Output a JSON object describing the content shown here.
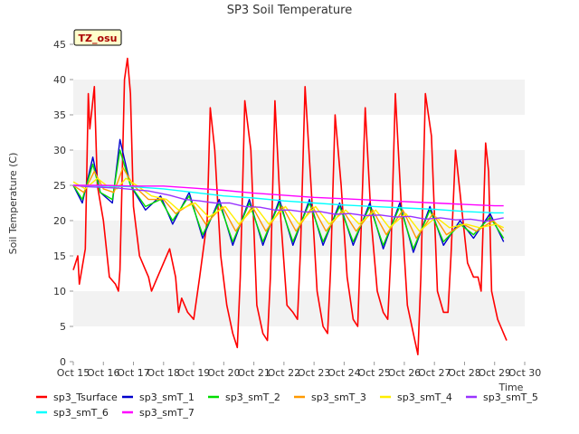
{
  "chart_data": {
    "type": "line",
    "title": "SP3 Soil Temperature",
    "xlabel": "Time",
    "ylabel": "Soil Temperature (C)",
    "ylim": [
      0,
      45
    ],
    "xlim": [
      0,
      15
    ],
    "yticks": [
      0,
      5,
      10,
      15,
      20,
      25,
      30,
      35,
      40,
      45
    ],
    "xticks": [
      "Oct 15",
      "Oct 16",
      "Oct 17",
      "Oct 18",
      "Oct 19",
      "Oct 20",
      "Oct 21",
      "Oct 22",
      "Oct 23",
      "Oct 24",
      "Oct 25",
      "Oct 26",
      "Oct 27",
      "Oct 28",
      "Oct 29",
      "Oct 30"
    ],
    "annotation": "TZ_osu",
    "grid": "horizontal bands",
    "legend_position": "bottom",
    "series": [
      {
        "name": "sp3_Tsurface",
        "color": "#ff0000",
        "x": [
          0.0,
          0.15,
          0.2,
          0.4,
          0.5,
          0.55,
          0.7,
          0.8,
          1.0,
          1.2,
          1.4,
          1.5,
          1.55,
          1.7,
          1.8,
          1.9,
          2.0,
          2.2,
          2.4,
          2.5,
          2.6,
          2.8,
          3.0,
          3.2,
          3.4,
          3.5,
          3.6,
          3.8,
          4.0,
          4.2,
          4.45,
          4.55,
          4.7,
          4.9,
          5.1,
          5.3,
          5.45,
          5.55,
          5.7,
          5.9,
          6.1,
          6.3,
          6.45,
          6.55,
          6.7,
          6.9,
          7.1,
          7.3,
          7.45,
          7.55,
          7.7,
          7.9,
          8.1,
          8.3,
          8.45,
          8.55,
          8.7,
          8.9,
          9.1,
          9.3,
          9.45,
          9.55,
          9.7,
          9.9,
          10.1,
          10.3,
          10.45,
          10.55,
          10.7,
          10.9,
          11.1,
          11.3,
          11.45,
          11.55,
          11.7,
          11.9,
          12.1,
          12.3,
          12.45,
          12.55,
          12.7,
          12.9,
          13.1,
          13.3,
          13.45,
          13.55,
          13.7,
          13.8,
          13.9,
          14.0,
          14.1,
          14.2,
          14.3,
          14.4
        ],
        "y": [
          13,
          15,
          11,
          16,
          38,
          33,
          39,
          25,
          20,
          12,
          11,
          10,
          13,
          40,
          43,
          38,
          22,
          15,
          13,
          12,
          10,
          12,
          14,
          16,
          12,
          7,
          9,
          7,
          6,
          12,
          20,
          36,
          30,
          15,
          8,
          4,
          2,
          12,
          37,
          30,
          8,
          4,
          3,
          12,
          37,
          20,
          8,
          7,
          6,
          16,
          39,
          25,
          10,
          5,
          4,
          13,
          35,
          25,
          12,
          6,
          5,
          17,
          36,
          20,
          10,
          7,
          6,
          15,
          38,
          22,
          8,
          4,
          1,
          12,
          38,
          32,
          10,
          7,
          7,
          15,
          30,
          22,
          14,
          12,
          12,
          10,
          31,
          27,
          10,
          8,
          6,
          5,
          4,
          3
        ]
      },
      {
        "name": "sp3_smT_1",
        "color": "#0000cc",
        "x": [
          0.0,
          0.3,
          0.65,
          0.9,
          1.3,
          1.55,
          1.9,
          2.4,
          2.9,
          3.3,
          3.85,
          4.3,
          4.85,
          5.3,
          5.85,
          6.3,
          6.85,
          7.3,
          7.85,
          8.3,
          8.85,
          9.3,
          9.85,
          10.3,
          10.85,
          11.3,
          11.85,
          12.3,
          12.85,
          13.3,
          13.85,
          14.3
        ],
        "y": [
          25,
          22.5,
          29,
          24,
          22.5,
          31.5,
          25,
          21.5,
          23.5,
          19.5,
          24,
          17.5,
          23,
          16.5,
          23,
          16.5,
          23,
          16.5,
          23,
          16.5,
          22.5,
          16.5,
          22.5,
          16,
          22.5,
          15.5,
          22,
          16.5,
          20,
          17.5,
          21,
          17
        ]
      },
      {
        "name": "sp3_smT_2",
        "color": "#00dd00",
        "x": [
          0.0,
          0.3,
          0.65,
          0.9,
          1.3,
          1.55,
          1.9,
          2.4,
          2.9,
          3.3,
          3.85,
          4.3,
          4.85,
          5.3,
          5.85,
          6.3,
          6.85,
          7.3,
          7.85,
          8.3,
          8.85,
          9.3,
          9.85,
          10.3,
          10.85,
          11.3,
          11.85,
          12.3,
          12.85,
          13.3,
          13.85,
          14.3
        ],
        "y": [
          25,
          23,
          28,
          24,
          23,
          30,
          25,
          22,
          23,
          20,
          23.5,
          18,
          22.5,
          17,
          22.5,
          17,
          22.5,
          17,
          22.5,
          17,
          22,
          17,
          22,
          16.5,
          22,
          16,
          21.5,
          17,
          19.5,
          18,
          20.5,
          17.5
        ]
      },
      {
        "name": "sp3_smT_3",
        "color": "#ff9900",
        "x": [
          0.0,
          0.35,
          0.7,
          1.0,
          1.35,
          1.65,
          2.0,
          2.5,
          3.0,
          3.4,
          3.95,
          4.4,
          4.95,
          5.4,
          5.95,
          6.4,
          6.95,
          7.4,
          7.95,
          8.4,
          8.95,
          9.4,
          9.95,
          10.4,
          10.95,
          11.4,
          11.95,
          12.4,
          12.95,
          13.4,
          13.95,
          14.3
        ],
        "y": [
          25,
          24,
          27,
          24.5,
          24,
          27.5,
          25,
          23,
          23,
          21,
          22.5,
          19.5,
          22,
          18.5,
          22,
          18.5,
          22,
          18.5,
          22,
          18.5,
          21.5,
          18.5,
          21.5,
          18,
          21.5,
          17.5,
          21,
          18,
          19.5,
          18.5,
          20,
          18.5
        ]
      },
      {
        "name": "sp3_smT_4",
        "color": "#ffee00",
        "x": [
          0.0,
          0.4,
          0.8,
          1.1,
          1.45,
          1.75,
          2.1,
          2.6,
          3.1,
          3.5,
          4.05,
          4.5,
          5.05,
          5.5,
          6.05,
          6.5,
          7.05,
          7.5,
          8.05,
          8.5,
          9.05,
          9.5,
          10.05,
          10.5,
          11.05,
          11.5,
          12.05,
          12.5,
          13.05,
          13.5,
          14.05,
          14.3
        ],
        "y": [
          25.5,
          24.5,
          26,
          25,
          24.5,
          26,
          25,
          23.5,
          23,
          21.5,
          22.5,
          20.5,
          22,
          19.5,
          22,
          19.5,
          22,
          19.5,
          22,
          19.5,
          21.5,
          19.5,
          21.5,
          19,
          21,
          18.5,
          20.5,
          19,
          19.5,
          19,
          19.5,
          19
        ]
      },
      {
        "name": "sp3_smT_5",
        "color": "#9933ff",
        "x": [
          0.0,
          0.5,
          1.0,
          1.5,
          2.0,
          2.5,
          3.2,
          3.7,
          4.2,
          4.7,
          5.2,
          5.7,
          6.2,
          6.7,
          7.2,
          7.7,
          8.2,
          8.7,
          9.2,
          9.7,
          10.2,
          10.7,
          11.2,
          11.7,
          12.2,
          12.7,
          13.2,
          13.7,
          14.3
        ],
        "y": [
          25,
          24.8,
          24.7,
          24.6,
          24.4,
          24.2,
          23.6,
          23.0,
          22.8,
          22.5,
          22.5,
          22.0,
          21.9,
          21.5,
          21.5,
          21.2,
          21.3,
          20.9,
          21.0,
          20.7,
          20.8,
          20.5,
          20.6,
          20.2,
          20.4,
          20.1,
          20.2,
          19.9,
          20.4
        ]
      },
      {
        "name": "sp3_smT_6",
        "color": "#00ffff",
        "x": [
          0.0,
          1.0,
          2.0,
          3.0,
          4.0,
          5.0,
          6.0,
          7.0,
          8.0,
          9.0,
          10.0,
          11.0,
          12.0,
          13.0,
          14.0,
          14.3
        ],
        "y": [
          25,
          24.9,
          24.8,
          24.5,
          24.0,
          23.5,
          23.2,
          22.8,
          22.5,
          22.2,
          22.0,
          21.8,
          21.6,
          21.3,
          21.1,
          21.1
        ]
      },
      {
        "name": "sp3_smT_7",
        "color": "#ff00ff",
        "x": [
          0.0,
          1.0,
          2.0,
          3.0,
          4.0,
          5.0,
          6.0,
          7.0,
          8.0,
          9.0,
          10.0,
          11.0,
          12.0,
          13.0,
          14.0,
          14.3
        ],
        "y": [
          25,
          25,
          24.9,
          24.9,
          24.6,
          24.3,
          23.9,
          23.6,
          23.3,
          23.1,
          22.9,
          22.7,
          22.5,
          22.3,
          22.1,
          22.1
        ]
      }
    ]
  }
}
